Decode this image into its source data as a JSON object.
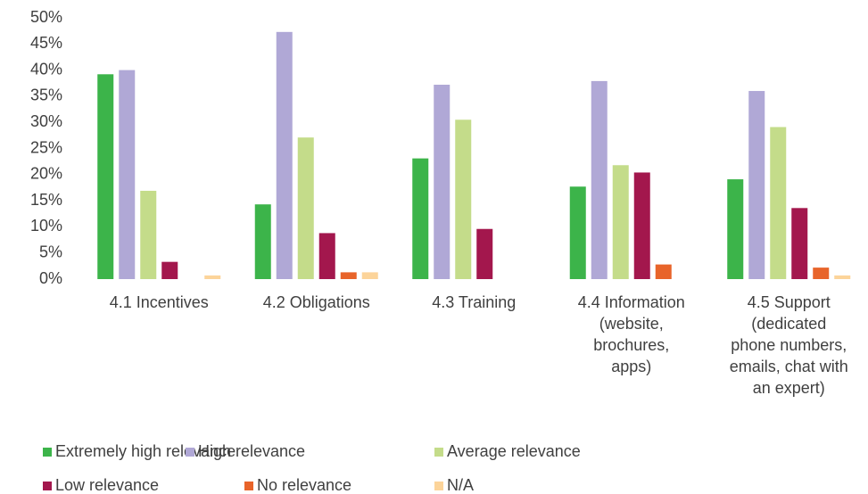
{
  "chart_data": {
    "type": "bar",
    "categories": [
      "4.1 Incentives",
      "4.2 Obligations",
      "4.3 Training",
      "4.4 Information\n(website,\nbrochures,\napps)",
      "4.5 Support\n(dedicated\nphone numbers,\nemails, chat with\nan expert)"
    ],
    "series": [
      {
        "name": "Extremely high relevance",
        "color": "#3cb44a",
        "values": [
          39.2,
          14.3,
          23.1,
          17.7,
          19.1
        ]
      },
      {
        "name": "High relevance",
        "color": "#b0a8d6",
        "values": [
          40,
          47.3,
          37.2,
          37.9,
          36
        ]
      },
      {
        "name": "Average relevance",
        "color": "#c4dc8a",
        "values": [
          16.9,
          27.1,
          30.5,
          21.8,
          29.1
        ]
      },
      {
        "name": "Low relevance",
        "color": "#a3174d",
        "values": [
          3.3,
          8.8,
          9.6,
          20.4,
          13.6
        ]
      },
      {
        "name": "No relevance",
        "color": "#e8642a",
        "values": [
          0,
          1.3,
          0,
          2.8,
          2.2
        ]
      },
      {
        "name": "N/A",
        "color": "#fcd49a",
        "values": [
          0.7,
          1.3,
          0,
          0,
          0.7
        ]
      }
    ],
    "ylim": [
      0,
      50
    ],
    "yticks": [
      {
        "value": 0,
        "label": "0%"
      },
      {
        "value": 5,
        "label": "5%"
      },
      {
        "value": 10,
        "label": "10%"
      },
      {
        "value": 15,
        "label": "15%"
      },
      {
        "value": 20,
        "label": "20%"
      },
      {
        "value": 25,
        "label": "25%"
      },
      {
        "value": 30,
        "label": "30%"
      },
      {
        "value": 35,
        "label": "35%"
      },
      {
        "value": 40,
        "label": "40%"
      },
      {
        "value": 45,
        "label": "45%"
      },
      {
        "value": 50,
        "label": "50%"
      }
    ],
    "grid": false,
    "legend": "bottom"
  }
}
